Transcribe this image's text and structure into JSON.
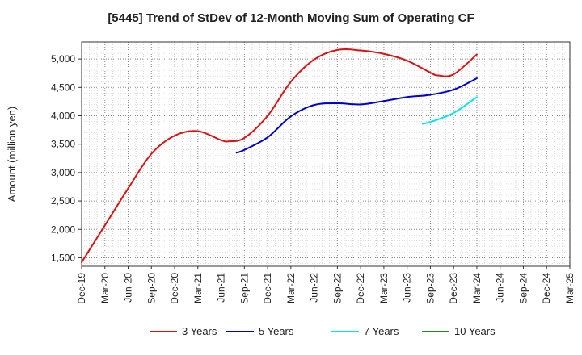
{
  "chart_data": {
    "type": "line",
    "title": "[5445]  Trend of StDev of 12-Month Moving Sum of Operating CF",
    "xlabel": "",
    "ylabel": "Amount (million yen)",
    "ylim": [
      1350,
      5300
    ],
    "yticks": [
      1500,
      2000,
      2500,
      3000,
      3500,
      4000,
      4500,
      5000
    ],
    "ytick_labels": [
      "1,500",
      "2,000",
      "2,500",
      "3,000",
      "3,500",
      "4,000",
      "4,500",
      "5,000"
    ],
    "x_categories": [
      "Dec-19",
      "Mar-20",
      "Jun-20",
      "Sep-20",
      "Dec-20",
      "Mar-21",
      "Jun-21",
      "Sep-21",
      "Dec-21",
      "Mar-22",
      "Jun-22",
      "Sep-22",
      "Dec-22",
      "Mar-23",
      "Jun-23",
      "Sep-23",
      "Dec-23",
      "Mar-24",
      "Jun-24",
      "Sep-24",
      "Dec-24",
      "Mar-25"
    ],
    "grid": true,
    "legend_position": "bottom",
    "series": [
      {
        "name": "3 Years",
        "color": "#dd1111",
        "points": [
          [
            "Dec-19",
            1420
          ],
          [
            "Mar-20",
            2070
          ],
          [
            "Jun-20",
            2720
          ],
          [
            "Sep-20",
            3330
          ],
          [
            "Dec-20",
            3650
          ],
          [
            "Mar-21",
            3730
          ],
          [
            "Jun-21",
            3570
          ],
          [
            "Jul-21",
            3550
          ],
          [
            "Sep-21",
            3610
          ],
          [
            "Dec-21",
            4000
          ],
          [
            "Mar-22",
            4600
          ],
          [
            "Jun-22",
            4990
          ],
          [
            "Sep-22",
            5160
          ],
          [
            "Dec-22",
            5150
          ],
          [
            "Mar-23",
            5090
          ],
          [
            "Jun-23",
            4970
          ],
          [
            "Sep-23",
            4760
          ],
          [
            "Oct-23",
            4710
          ],
          [
            "Dec-23",
            4730
          ],
          [
            "Mar-24",
            5080
          ]
        ]
      },
      {
        "name": "5 Years",
        "color": "#0000cc",
        "points": [
          [
            "Aug-21",
            3350
          ],
          [
            "Sep-21",
            3400
          ],
          [
            "Dec-21",
            3620
          ],
          [
            "Mar-22",
            3990
          ],
          [
            "Jun-22",
            4190
          ],
          [
            "Sep-22",
            4220
          ],
          [
            "Dec-22",
            4200
          ],
          [
            "Mar-23",
            4260
          ],
          [
            "Jun-23",
            4330
          ],
          [
            "Sep-23",
            4370
          ],
          [
            "Dec-23",
            4460
          ],
          [
            "Mar-24",
            4660
          ]
        ]
      },
      {
        "name": "7 Years",
        "color": "#00e5ee",
        "points": [
          [
            "Aug-23",
            3860
          ],
          [
            "Sep-23",
            3890
          ],
          [
            "Dec-23",
            4050
          ],
          [
            "Mar-24",
            4330
          ]
        ]
      },
      {
        "name": "10 Years",
        "color": "#228822",
        "points": []
      }
    ]
  }
}
